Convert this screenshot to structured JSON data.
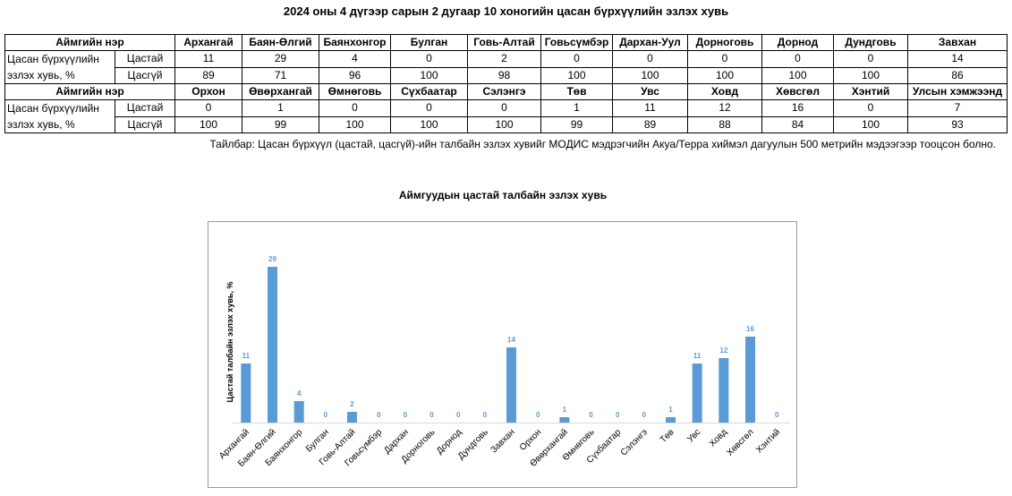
{
  "title": "2024 оны 4 дүгээр сарын 2 дугаар 10 хоногийн цасан бүрхүүлийн эзлэх хувь",
  "table": {
    "header_label": "Аймгийн нэр",
    "row_group_label": "Цасан бүрхүүлийн эзлэх хувь, %",
    "snow_label": "Цастай",
    "nosnow_label": "Цасгүй",
    "block1": {
      "names": [
        "Архангай",
        "Баян-Өлгий",
        "Баянхонгор",
        "Булган",
        "Говь-Алтай",
        "Говьсүмбэр",
        "Дархан-Уул",
        "Дорноговь",
        "Дорнод",
        "Дундговь",
        "Завхан"
      ],
      "snow": [
        "11",
        "29",
        "4",
        "0",
        "2",
        "0",
        "0",
        "0",
        "0",
        "0",
        "14"
      ],
      "nosnow": [
        "89",
        "71",
        "96",
        "100",
        "98",
        "100",
        "100",
        "100",
        "100",
        "100",
        "86"
      ]
    },
    "block2": {
      "names": [
        "Орхон",
        "Өвөрхангай",
        "Өмнөговь",
        "Сүхбаатар",
        "Сэлэнгэ",
        "Төв",
        "Увс",
        "Ховд",
        "Хөвсгөл",
        "Хэнтий",
        "Улсын хэмжээнд"
      ],
      "snow": [
        "0",
        "1",
        "0",
        "0",
        "0",
        "1",
        "11",
        "12",
        "16",
        "0",
        "7"
      ],
      "nosnow": [
        "100",
        "99",
        "100",
        "100",
        "100",
        "99",
        "89",
        "88",
        "84",
        "100",
        "93"
      ]
    }
  },
  "note": "Тайлбар: Цасан бүрхүүл (цастай, цасгүй)-ийн талбайн эзлэх хувийг МОДИС мэдрэгчийн Акуа/Терра хиймэл дагуулын 500 метрийн мэдээгээр тооцсон болно.",
  "colors": {
    "bar": "#5b9bd5",
    "label": "#5b9bd5",
    "axis": "#d9d9d9",
    "frame": "#9a9a9a"
  },
  "chart_data": {
    "type": "bar",
    "title": "Аймгуудын цастай талбайн эзлэх хувь",
    "ylabel": "Цастай талбайн эзлэх хувь, %",
    "xlabel": "",
    "ylim": [
      0,
      30
    ],
    "grid": false,
    "categories": [
      "Архангай",
      "Баян-Өлгий",
      "Баянхонгор",
      "Булган",
      "Говь-Алтай",
      "Говьсүмбэр",
      "Дархан",
      "Дорноговь",
      "Дорнод",
      "Дундговь",
      "Завхан",
      "Орхон",
      "Өвөрхангай",
      "Өмнөговь",
      "Сүхбаатар",
      "Сэлэнгэ",
      "Төв",
      "Увс",
      "Ховд",
      "Хөвсгөл",
      "Хэнтий"
    ],
    "values": [
      11,
      29,
      4,
      0,
      2,
      0,
      0,
      0,
      0,
      0,
      14,
      0,
      1,
      0,
      0,
      0,
      1,
      11,
      12,
      16,
      0
    ]
  }
}
